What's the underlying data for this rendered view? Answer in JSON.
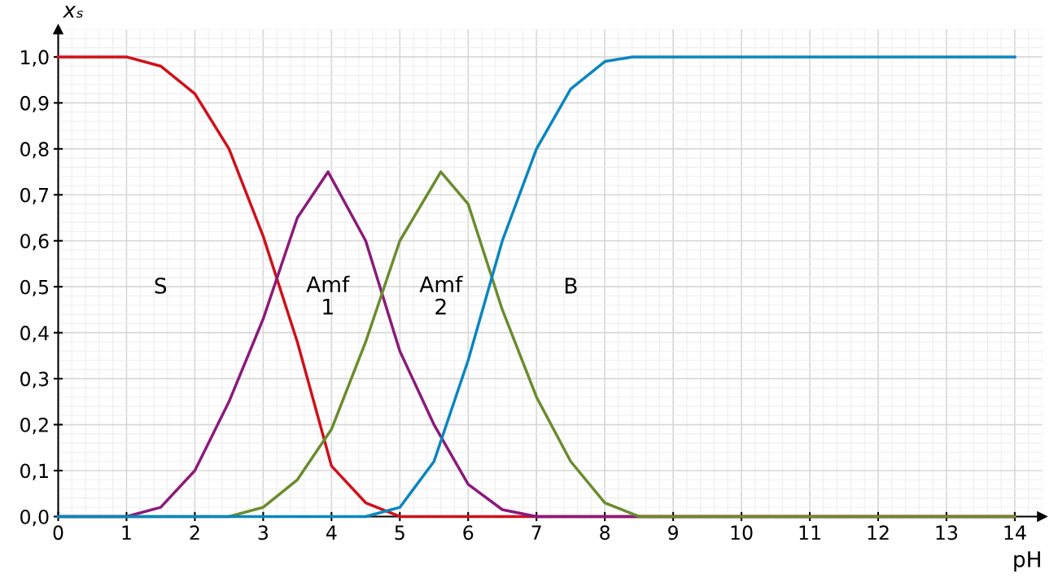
{
  "chart_data": {
    "type": "line",
    "ylabel": "xₛ",
    "xlabel": "pH",
    "xlim": [
      0,
      14.4
    ],
    "ylim": [
      0,
      1.06
    ],
    "xticks": [
      0,
      1,
      2,
      3,
      4,
      5,
      6,
      7,
      8,
      9,
      10,
      11,
      12,
      13,
      14
    ],
    "yticks": [
      {
        "value": 0,
        "label": "0,0"
      },
      {
        "value": 0.1,
        "label": "0,1"
      },
      {
        "value": 0.2,
        "label": "0,2"
      },
      {
        "value": 0.3,
        "label": "0,3"
      },
      {
        "value": 0.4,
        "label": "0,4"
      },
      {
        "value": 0.5,
        "label": "0,5"
      },
      {
        "value": 0.6,
        "label": "0,6"
      },
      {
        "value": 0.7,
        "label": "0,7"
      },
      {
        "value": 0.8,
        "label": "0,8"
      },
      {
        "value": 0.9,
        "label": "0,9"
      },
      {
        "value": 1.0,
        "label": "1,0"
      }
    ],
    "grid": true,
    "legend": false,
    "marker": "none",
    "line_style": "solid",
    "series": [
      {
        "color": "#d0101a",
        "x": [
          0,
          1,
          1.5,
          2,
          2.5,
          3,
          3.5,
          4,
          4.5,
          5,
          14
        ],
        "values": [
          1.0,
          1.0,
          0.98,
          0.92,
          0.8,
          0.61,
          0.38,
          0.11,
          0.03,
          0.0,
          0.0
        ]
      },
      {
        "color": "#8b1a7a",
        "x": [
          0,
          1,
          1.5,
          2,
          2.5,
          3,
          3.5,
          3.95,
          4.5,
          5,
          5.5,
          6,
          6.5,
          7,
          14
        ],
        "values": [
          0.0,
          0.0,
          0.02,
          0.1,
          0.25,
          0.43,
          0.65,
          0.75,
          0.6,
          0.36,
          0.2,
          0.07,
          0.015,
          0.0,
          0.0
        ]
      },
      {
        "color": "#6a8c2e",
        "x": [
          0,
          2.5,
          3,
          3.5,
          4,
          4.5,
          5,
          5.6,
          6,
          6.5,
          7,
          7.5,
          8,
          8.5,
          14
        ],
        "values": [
          0.0,
          0.0,
          0.02,
          0.08,
          0.19,
          0.38,
          0.6,
          0.75,
          0.68,
          0.45,
          0.26,
          0.12,
          0.03,
          0.0,
          0.0
        ]
      },
      {
        "color": "#0a86c0",
        "x": [
          0,
          4.5,
          5,
          5.5,
          6,
          6.5,
          7,
          7.5,
          8,
          8.4,
          14
        ],
        "values": [
          0.0,
          0.0,
          0.02,
          0.12,
          0.34,
          0.6,
          0.8,
          0.93,
          0.99,
          1.0,
          1.0
        ]
      }
    ],
    "annotations": [
      "S",
      "Amf\n1",
      "Amf\n2",
      "B"
    ]
  }
}
